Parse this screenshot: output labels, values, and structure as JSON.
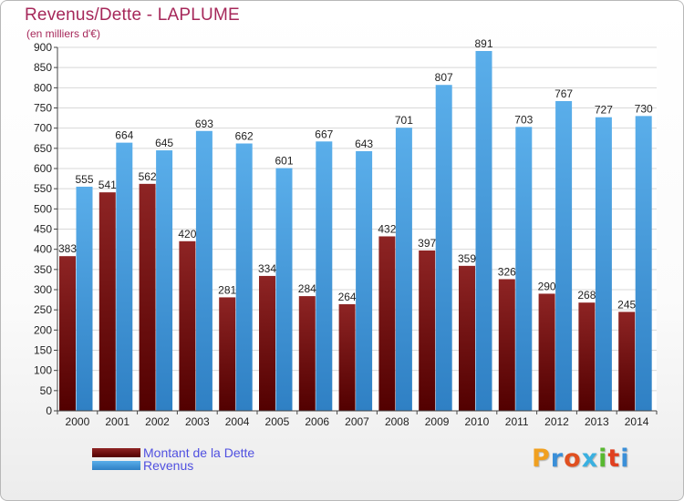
{
  "title": "Revenus/Dette - LAPLUME",
  "subtitle": "(en milliers d'€)",
  "legend": {
    "debt_label": "Montant de la Dette",
    "revenue_label": "Revenus"
  },
  "logo": {
    "text": "Proxiti"
  },
  "colors": {
    "title": "#a6285a",
    "debt": "#7a1414",
    "revenue": "#3d9be0",
    "legend_text": "#5050e0"
  },
  "chart_data": {
    "type": "bar",
    "categories": [
      "2000",
      "2001",
      "2002",
      "2003",
      "2004",
      "2005",
      "2006",
      "2007",
      "2008",
      "2009",
      "2010",
      "2011",
      "2012",
      "2013",
      "2014"
    ],
    "series": [
      {
        "name": "Montant de la Dette",
        "values": [
          383,
          541,
          562,
          420,
          281,
          334,
          284,
          264,
          432,
          397,
          359,
          326,
          290,
          268,
          245
        ]
      },
      {
        "name": "Revenus",
        "values": [
          555,
          664,
          645,
          693,
          662,
          601,
          667,
          643,
          701,
          807,
          891,
          703,
          767,
          727,
          730
        ]
      }
    ],
    "ylim": [
      0,
      900
    ],
    "yticks": [
      0,
      50,
      100,
      150,
      200,
      250,
      300,
      350,
      400,
      450,
      500,
      550,
      600,
      650,
      700,
      750,
      800,
      850,
      900
    ],
    "grid": true,
    "legend_position": "bottom-left"
  }
}
